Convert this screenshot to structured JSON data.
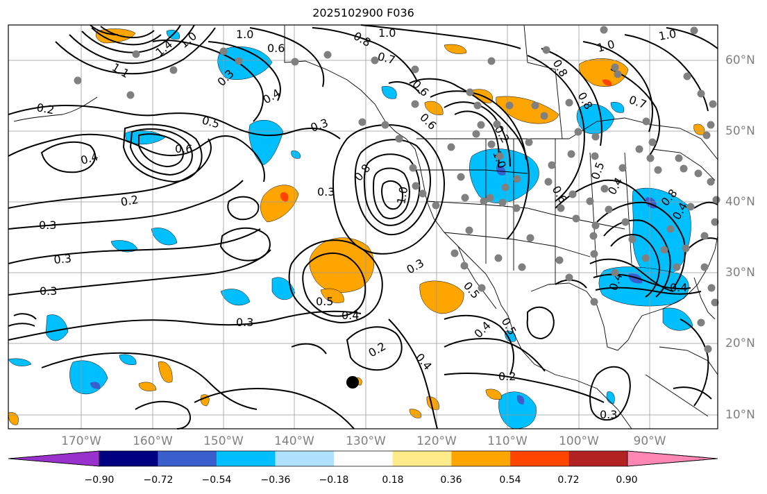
{
  "title": "2025102900 F036",
  "lon_labels": [
    "170°W",
    "160°W",
    "150°W",
    "140°W",
    "130°W",
    "120°W",
    "110°W",
    "100°W",
    "90°W"
  ],
  "lat_labels": [
    "60°N",
    "50°N",
    "40°N",
    "30°N",
    "20°N",
    "10°N"
  ],
  "colorbar": {
    "ticks": [
      "−0.90",
      "−0.72",
      "−0.54",
      "−0.36",
      "−0.18",
      "0.18",
      "0.36",
      "0.54",
      "0.72",
      "0.90"
    ],
    "colors": [
      "#9932cc",
      "#000080",
      "#3a5fcd",
      "#00bfff",
      "#b0e2ff",
      "#ffffff",
      "#ffeb8a",
      "#ffa500",
      "#ff4500",
      "#b22222",
      "#ff87b4"
    ]
  },
  "contour_labels": [
    "1.0",
    "0.8",
    "1.0",
    "0.6",
    "0.7",
    "1.4",
    "1.0",
    "1.1",
    "0.3",
    "0.4",
    "0.2",
    "0.5",
    "0.6",
    "0.3",
    "0.4",
    "0.2",
    "0.3",
    "0.3",
    "0.3",
    "0.8",
    "1.0",
    "0.6",
    "0.6",
    "0.2",
    "0.8",
    "0.8",
    "0.7",
    "1.0",
    "1.0",
    "1.0",
    "0.6",
    "0.4",
    "0.8",
    "0.5",
    "0.4",
    "0.4",
    "0.5",
    "0.4",
    "0.3",
    "0.2",
    "0.4",
    "0.2",
    "0.3",
    "0.5",
    "0.4",
    "0.5",
    "0.3",
    "0.4",
    "0.3"
  ],
  "marker_color": "#000000"
}
